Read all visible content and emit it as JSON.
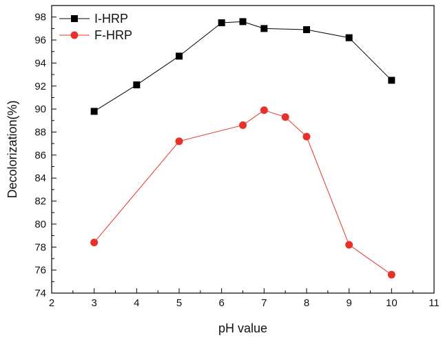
{
  "chart_data": {
    "type": "line",
    "title": "",
    "xlabel": "pH value",
    "ylabel": "Decolorization(%)",
    "xlim": [
      2,
      11
    ],
    "ylim": [
      74,
      99
    ],
    "x_ticks": [
      2,
      3,
      4,
      5,
      6,
      7,
      8,
      9,
      10,
      11
    ],
    "y_ticks": [
      74,
      76,
      78,
      80,
      82,
      84,
      86,
      88,
      90,
      92,
      94,
      96,
      98
    ],
    "grid": false,
    "legend_position": "top-left",
    "series": [
      {
        "name": "I-HRP",
        "color": "#000000",
        "marker": "square",
        "x": [
          3,
          4,
          5,
          6,
          6.5,
          7,
          8,
          9,
          10
        ],
        "y": [
          89.8,
          92.1,
          94.6,
          97.5,
          97.6,
          97.0,
          96.9,
          96.2,
          92.5
        ]
      },
      {
        "name": "F-HRP",
        "color": "#e8312a",
        "marker": "circle",
        "x": [
          3,
          5,
          6.5,
          7,
          7.5,
          8,
          9,
          10
        ],
        "y": [
          78.4,
          87.2,
          88.6,
          89.9,
          89.3,
          87.6,
          78.2,
          75.6
        ]
      }
    ]
  }
}
